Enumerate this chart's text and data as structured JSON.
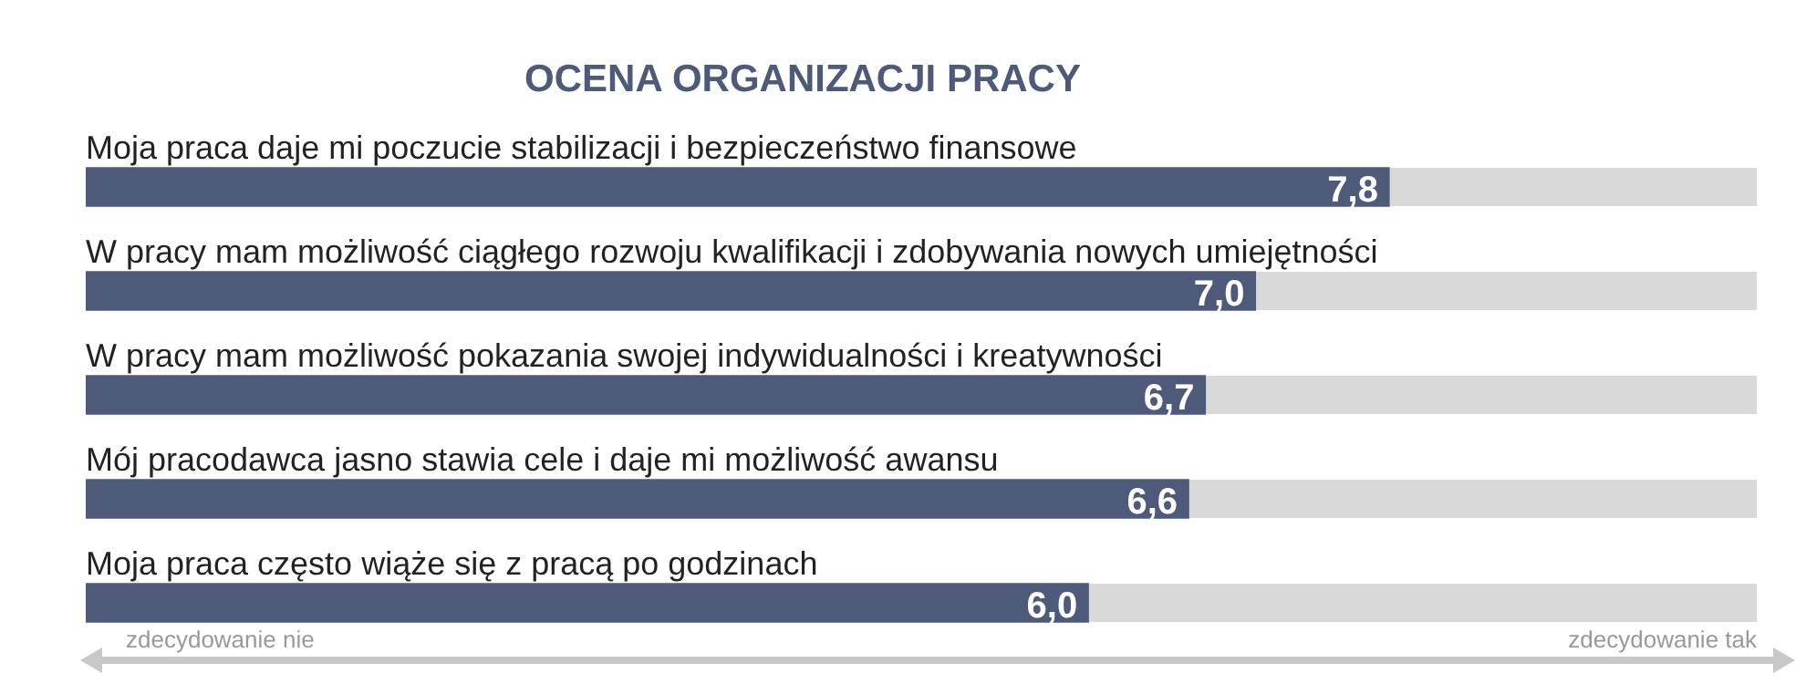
{
  "chart_data": {
    "type": "bar",
    "orientation": "horizontal",
    "title": "OCENA ORGANIZACJI PRACY",
    "categories": [
      "Moja praca daje mi poczucie stabilizacji i bezpieczeństwo finansowe",
      "W pracy mam możliwość ciągłego rozwoju kwalifikacji i zdobywania nowych umiejętności",
      "W pracy mam możliwość pokazania swojej indywidualności i kreatywności",
      "Mój pracodawca jasno stawia cele i daje mi możliwość awansu",
      "Moja praca często wiąże się z pracą po godzinach"
    ],
    "values": [
      7.8,
      7.0,
      6.7,
      6.6,
      6.0
    ],
    "value_labels": [
      "7,8",
      "7,0",
      "6,7",
      "6,6",
      "6,0"
    ],
    "color": "#4e5a7a",
    "xlim": [
      0,
      10
    ],
    "tick_labels": false,
    "grid": false,
    "legend": false,
    "annotations": [
      "zdecydowanie nie",
      "zdecydowanie tak"
    ]
  }
}
